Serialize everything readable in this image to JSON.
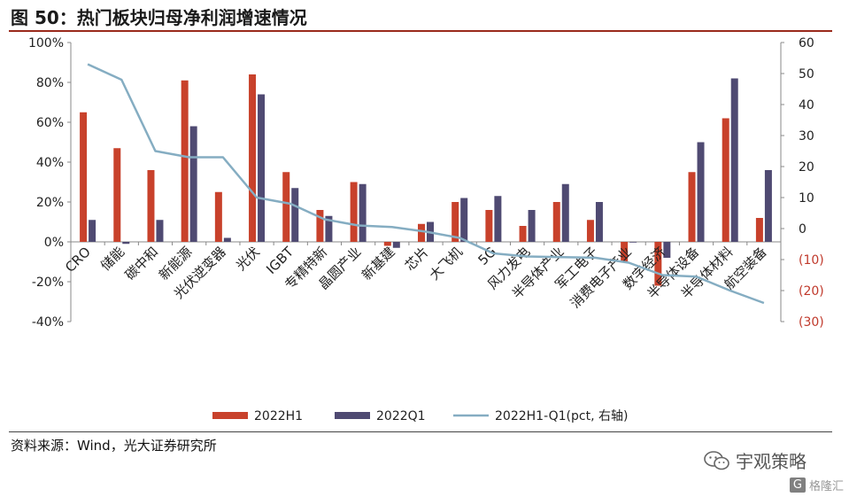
{
  "title": "图 50：热门板块归母净利润增速情况",
  "source": "资料来源：Wind，光大证券研究所",
  "watermark": {
    "text": "宇观策略",
    "icon": "wechat-icon"
  },
  "brand": {
    "text": "格隆汇",
    "icon": "gelonghui-logo-icon"
  },
  "colors": {
    "h1": "#c8412b",
    "q1": "#4f4a72",
    "line": "#85adc2",
    "negative_tick": "#c0392b",
    "title_rule": "#9a2a1c"
  },
  "chart_data": {
    "type": "bar",
    "title": "",
    "categories": [
      "CRO",
      "储能",
      "碳中和",
      "新能源",
      "光伏逆变器",
      "光伏",
      "IGBT",
      "专精特新",
      "晶圆产业",
      "新基建",
      "芯片",
      "大飞机",
      "5G",
      "风力发电",
      "半导体产业",
      "军工电子",
      "消费电子产业",
      "数字经济",
      "半导体设备",
      "半导体材料",
      "航空装备"
    ],
    "series": [
      {
        "name": "2022H1",
        "kind": "bar",
        "axis": "left",
        "values": [
          65,
          47,
          36,
          81,
          25,
          84,
          35,
          16,
          30,
          -2,
          9,
          20,
          16,
          8,
          20,
          11,
          -10,
          -22,
          35,
          62,
          12
        ]
      },
      {
        "name": "2022Q1",
        "kind": "bar",
        "axis": "left",
        "values": [
          11,
          -1,
          11,
          58,
          2,
          74,
          27,
          13,
          29,
          -3,
          10,
          22,
          23,
          16,
          29,
          20,
          0,
          -8,
          50,
          82,
          36
        ]
      },
      {
        "name": "2022H1-Q1(pct, 右轴)",
        "kind": "line",
        "axis": "right",
        "values": [
          53,
          48,
          25,
          23,
          23,
          10,
          8,
          3,
          1,
          0.5,
          -1,
          -3,
          -8,
          -9,
          -9.2,
          -9.4,
          -11,
          -15,
          -15.5,
          -20,
          -24
        ]
      }
    ],
    "left_axis": {
      "ylim": [
        -40,
        100
      ],
      "ticks": [
        -40,
        -20,
        0,
        20,
        40,
        60,
        80,
        100
      ],
      "tick_labels": [
        "-40%",
        "-20%",
        "0%",
        "20%",
        "40%",
        "60%",
        "80%",
        "100%"
      ]
    },
    "right_axis": {
      "ylim": [
        -30,
        60
      ],
      "ticks": [
        -30,
        -20,
        -10,
        0,
        10,
        20,
        30,
        40,
        50,
        60
      ],
      "tick_labels": [
        "(30)",
        "(20)",
        "(10)",
        "0",
        "10",
        "20",
        "30",
        "40",
        "50",
        "60"
      ]
    },
    "legend_position": "bottom",
    "grid": false
  }
}
